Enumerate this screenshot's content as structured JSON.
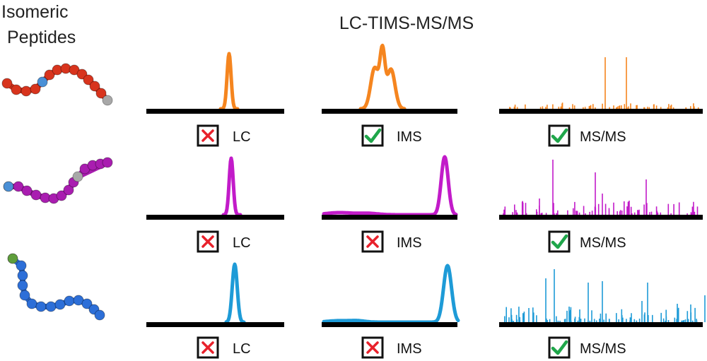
{
  "header": {
    "left_title_line1": "Isomeric",
    "left_title_line2": "Peptides",
    "main_title": "LC-TIMS-MS/MS"
  },
  "rows": [
    {
      "color": "#F5851F",
      "peptide_colors": {
        "body": "#D8341D",
        "accent": "#4A90D6",
        "terminal": "#A8A8A8"
      },
      "results": [
        {
          "label": "LC",
          "status": "cross"
        },
        {
          "label": "IMS",
          "status": "check"
        },
        {
          "label": "MS/MS",
          "status": "check"
        }
      ]
    },
    {
      "color": "#C21BC9",
      "peptide_colors": {
        "body": "#A91DB0",
        "accent": "#4A90D6",
        "terminal": "#A8A8A8"
      },
      "results": [
        {
          "label": "LC",
          "status": "cross"
        },
        {
          "label": "IMS",
          "status": "cross"
        },
        {
          "label": "MS/MS",
          "status": "check"
        }
      ]
    },
    {
      "color": "#1E9BD7",
      "peptide_colors": {
        "body": "#2D6FD8",
        "accent": "#5E9E3B",
        "terminal": "#2D6FD8"
      },
      "results": [
        {
          "label": "LC",
          "status": "cross"
        },
        {
          "label": "IMS",
          "status": "cross"
        },
        {
          "label": "MS/MS",
          "status": "check"
        }
      ]
    }
  ],
  "colors": {
    "cross": "#E8212B",
    "check": "#1FA64A",
    "axis": "#000000"
  }
}
